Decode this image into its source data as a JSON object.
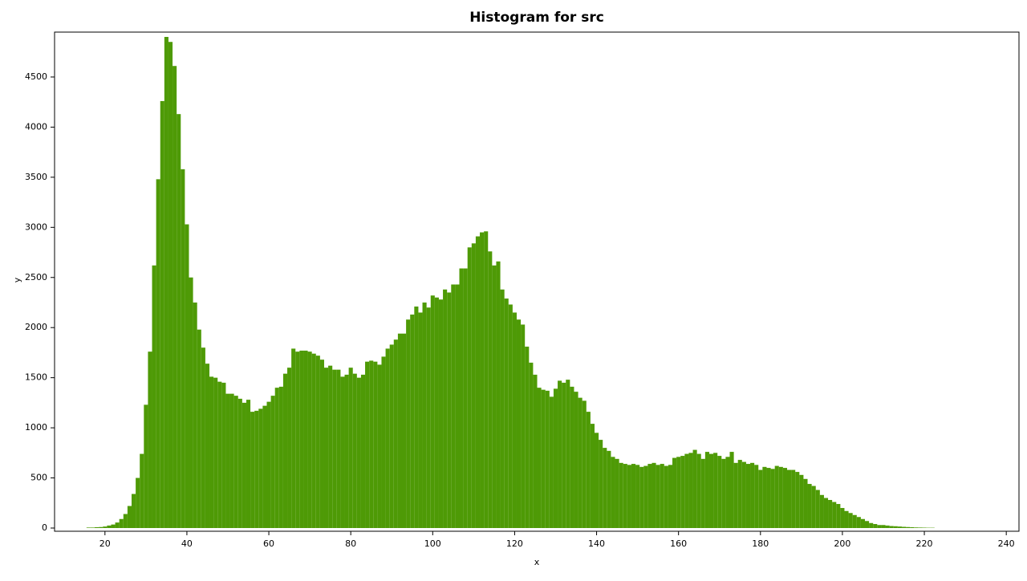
{
  "chart_data": {
    "type": "histogram",
    "title": "Histogram for src",
    "x_label": "x",
    "y_label": "y",
    "color": "#4e9a06",
    "bins": [
      15.5,
      16.5,
      17.5,
      18.5,
      19.5,
      20.5,
      21.5,
      22.5,
      23.5,
      24.5,
      25.5,
      26.5,
      27.5,
      28.5,
      29.5,
      30.5,
      31.5,
      32.5,
      33.5,
      34.5,
      35.5,
      36.5,
      37.5,
      38.5,
      39.5,
      40.5,
      41.5,
      42.5,
      43.5,
      44.5,
      45.5,
      46.5,
      47.5,
      48.5,
      49.5,
      50.5,
      51.5,
      52.5,
      53.5,
      54.5,
      55.5,
      56.5,
      57.5,
      58.5,
      59.5,
      60.5,
      61.5,
      62.5,
      63.5,
      64.5,
      65.5,
      66.5,
      67.5,
      68.5,
      69.5,
      70.5,
      71.5,
      72.5,
      73.5,
      74.5,
      75.5,
      76.5,
      77.5,
      78.5,
      79.5,
      80.5,
      81.5,
      82.5,
      83.5,
      84.5,
      85.5,
      86.5,
      87.5,
      88.5,
      89.5,
      90.5,
      91.5,
      92.5,
      93.5,
      94.5,
      95.5,
      96.5,
      97.5,
      98.5,
      99.5,
      100.5,
      101.5,
      102.5,
      103.5,
      104.5,
      105.5,
      106.5,
      107.5,
      108.5,
      109.5,
      110.5,
      111.5,
      112.5,
      113.5,
      114.5,
      115.5,
      116.5,
      117.5,
      118.5,
      119.5,
      120.5,
      121.5,
      122.5,
      123.5,
      124.5,
      125.5,
      126.5,
      127.5,
      128.5,
      129.5,
      130.5,
      131.5,
      132.5,
      133.5,
      134.5,
      135.5,
      136.5,
      137.5,
      138.5,
      139.5,
      140.5,
      141.5,
      142.5,
      143.5,
      144.5,
      145.5,
      146.5,
      147.5,
      148.5,
      149.5,
      150.5,
      151.5,
      152.5,
      153.5,
      154.5,
      155.5,
      156.5,
      157.5,
      158.5,
      159.5,
      160.5,
      161.5,
      162.5,
      163.5,
      164.5,
      165.5,
      166.5,
      167.5,
      168.5,
      169.5,
      170.5,
      171.5,
      172.5,
      173.5,
      174.5,
      175.5,
      176.5,
      177.5,
      178.5,
      179.5,
      180.5,
      181.5,
      182.5,
      183.5,
      184.5,
      185.5,
      186.5,
      187.5,
      188.5,
      189.5,
      190.5,
      191.5,
      192.5,
      193.5,
      194.5,
      195.5,
      196.5,
      197.5,
      198.5,
      199.5,
      200.5,
      201.5,
      202.5,
      203.5,
      204.5,
      205.5,
      206.5,
      207.5,
      208.5,
      209.5,
      210.5,
      211.5,
      212.5,
      213.5,
      214.5,
      215.5,
      216.5,
      217.5,
      218.5,
      219.5,
      220.5,
      221.5,
      222.5
    ],
    "counts": [
      5,
      5,
      8,
      10,
      15,
      25,
      35,
      55,
      90,
      140,
      220,
      340,
      500,
      740,
      1230,
      1760,
      2620,
      3480,
      4260,
      4900,
      4850,
      4610,
      4130,
      3580,
      3030,
      2500,
      2250,
      1980,
      1800,
      1640,
      1510,
      1500,
      1460,
      1450,
      1340,
      1340,
      1320,
      1290,
      1250,
      1280,
      1160,
      1170,
      1190,
      1220,
      1260,
      1320,
      1400,
      1410,
      1540,
      1600,
      1790,
      1760,
      1770,
      1770,
      1760,
      1740,
      1720,
      1680,
      1600,
      1620,
      1580,
      1580,
      1510,
      1530,
      1600,
      1540,
      1500,
      1530,
      1660,
      1670,
      1660,
      1630,
      1710,
      1790,
      1830,
      1880,
      1940,
      1940,
      2080,
      2130,
      2210,
      2150,
      2250,
      2200,
      2320,
      2300,
      2280,
      2380,
      2350,
      2430,
      2430,
      2590,
      2590,
      2800,
      2840,
      2910,
      2950,
      2960,
      2760,
      2620,
      2660,
      2380,
      2290,
      2230,
      2150,
      2080,
      2030,
      1810,
      1650,
      1530,
      1400,
      1380,
      1370,
      1310,
      1390,
      1470,
      1450,
      1480,
      1410,
      1360,
      1300,
      1270,
      1160,
      1040,
      950,
      880,
      800,
      770,
      710,
      690,
      650,
      640,
      630,
      640,
      630,
      610,
      620,
      640,
      650,
      630,
      640,
      620,
      630,
      700,
      710,
      720,
      740,
      750,
      780,
      740,
      690,
      760,
      740,
      750,
      720,
      690,
      710,
      760,
      650,
      680,
      660,
      640,
      650,
      630,
      580,
      610,
      600,
      590,
      620,
      610,
      600,
      580,
      580,
      560,
      530,
      490,
      440,
      420,
      380,
      330,
      300,
      280,
      260,
      240,
      200,
      170,
      150,
      130,
      110,
      90,
      70,
      50,
      40,
      30,
      30,
      25,
      20,
      18,
      15,
      12,
      10,
      8,
      6,
      5,
      4,
      3,
      3
    ],
    "xlim": [
      7.7,
      243.1
    ],
    "xticks": [
      20,
      40,
      60,
      80,
      100,
      120,
      140,
      160,
      180,
      200,
      220,
      240
    ],
    "ylim": [
      -32,
      4948
    ],
    "yticks": [
      0,
      500,
      1000,
      1500,
      2000,
      2500,
      3000,
      3500,
      4000,
      4500
    ]
  }
}
